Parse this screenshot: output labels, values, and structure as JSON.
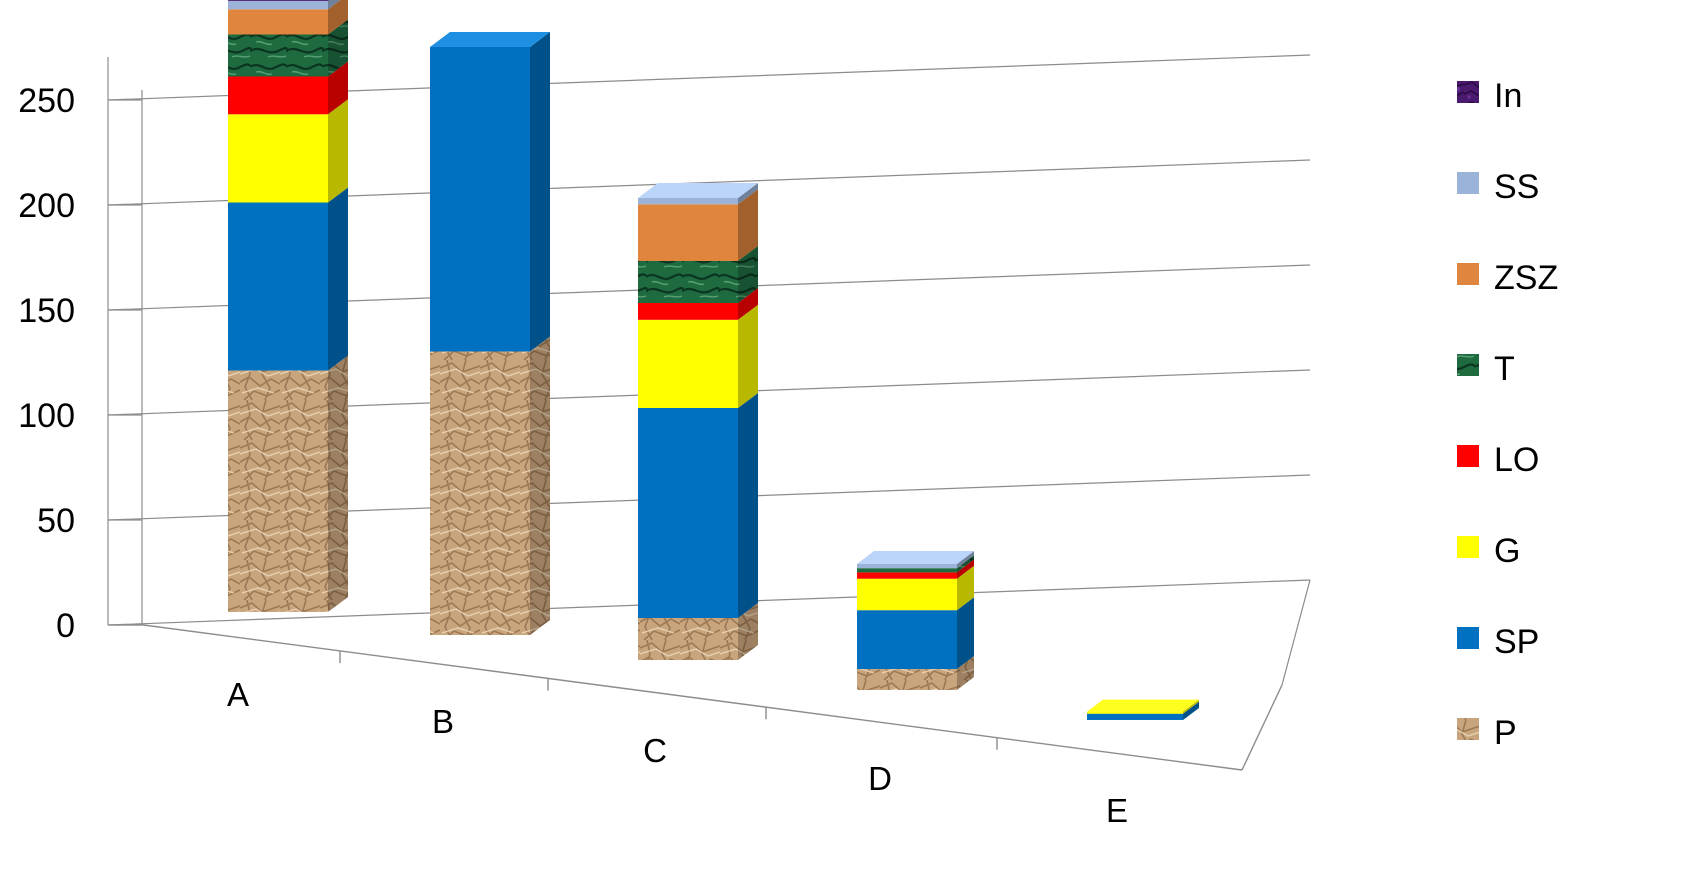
{
  "chart_data": {
    "type": "bar",
    "stacked": true,
    "three_d": true,
    "title": "",
    "xlabel": "",
    "ylabel": "",
    "ylim": [
      0,
      280
    ],
    "yticks": [
      "0",
      "50",
      "100",
      "150",
      "200",
      "250"
    ],
    "categories": [
      "A",
      "B",
      "C",
      "D",
      "E"
    ],
    "series": [
      {
        "name": "P",
        "color": "#c9a57e",
        "texture": "crumpled-paper",
        "values": [
          115,
          135,
          20,
          10,
          0
        ]
      },
      {
        "name": "SP",
        "color": "#0070c0",
        "values": [
          80,
          145,
          100,
          28,
          3
        ]
      },
      {
        "name": "G",
        "color": "#ffff00",
        "values": [
          42,
          0,
          42,
          15,
          1
        ]
      },
      {
        "name": "LO",
        "color": "#ff0000",
        "values": [
          18,
          0,
          8,
          3,
          0
        ]
      },
      {
        "name": "T",
        "color": "#1a5c3a",
        "texture": "green-marble",
        "values": [
          20,
          0,
          20,
          2,
          0
        ]
      },
      {
        "name": "ZSZ",
        "color": "#e0853d",
        "values": [
          12,
          0,
          27,
          0,
          0
        ]
      },
      {
        "name": "SS",
        "color": "#9bb3d9",
        "values": [
          4,
          0,
          3,
          2,
          0
        ]
      },
      {
        "name": "In",
        "color": "#4a1a6e",
        "texture": "purple-mottled",
        "values": [
          2,
          0,
          0,
          0,
          0
        ]
      }
    ],
    "grid": true,
    "legend": "right"
  }
}
